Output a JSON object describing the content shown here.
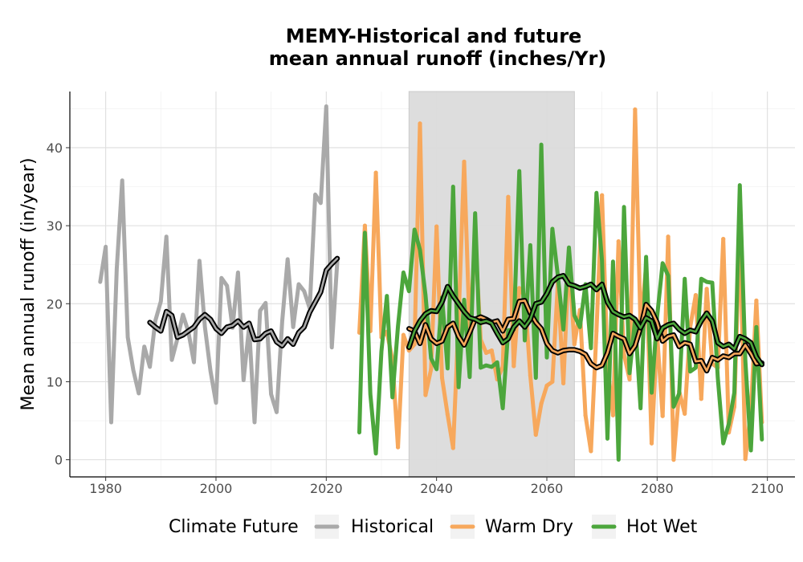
{
  "chart_data": {
    "type": "line",
    "title": "MEMY-Historical and future",
    "subtitle": "mean annual runoff (inches/Yr)",
    "xlabel": "",
    "ylabel": "Mean annual runoff (in/year)",
    "xlim": [
      1973.5,
      2105
    ],
    "ylim": [
      -2.2,
      47.2
    ],
    "x_ticks": [
      1980,
      2000,
      2020,
      2040,
      2060,
      2080,
      2100
    ],
    "y_ticks": [
      0,
      10,
      20,
      30,
      40
    ],
    "grid": true,
    "shaded_period": {
      "x_start": 2035,
      "x_end": 2065,
      "color": "#dcdcdc"
    },
    "legend": {
      "title": "Climate Future",
      "position": "bottom",
      "entries": [
        {
          "label": "Historical",
          "color": "#a9a9a9"
        },
        {
          "label": "Warm Dry",
          "color": "#f7a85c"
        },
        {
          "label": "Hot Wet",
          "color": "#4ca63c"
        }
      ]
    },
    "series": [
      {
        "name": "Historical",
        "color": "#a9a9a9",
        "x": [
          1979,
          1980,
          1981,
          1982,
          1983,
          1984,
          1985,
          1986,
          1987,
          1988,
          1989,
          1990,
          1991,
          1992,
          1993,
          1994,
          1995,
          1996,
          1997,
          1998,
          1999,
          2000,
          2001,
          2002,
          2003,
          2004,
          2005,
          2006,
          2007,
          2008,
          2009,
          2010,
          2011,
          2012,
          2013,
          2014,
          2015,
          2016,
          2017,
          2018,
          2019,
          2020,
          2021,
          2022
        ],
        "y": [
          22.8,
          27.3,
          4.8,
          24.5,
          35.8,
          15.7,
          11.5,
          8.5,
          14.5,
          11.9,
          17.8,
          20.3,
          28.6,
          12.8,
          15.5,
          18.6,
          16.4,
          12.5,
          25.5,
          17.0,
          11.4,
          7.3,
          23.3,
          22.3,
          16.9,
          24.0,
          10.2,
          17.0,
          4.8,
          19.1,
          20.1,
          8.4,
          6.1,
          17.7,
          25.7,
          17.0,
          22.5,
          21.6,
          19.4,
          34.0,
          32.9,
          45.3,
          14.4,
          25.4
        ]
      },
      {
        "name": "",
        "color": "#000000",
        "x": [
          1988,
          1989,
          1990,
          1991,
          1992,
          1993,
          1994,
          1995,
          1996,
          1997,
          1998,
          1999,
          2000,
          2001,
          2002,
          2003,
          2004,
          2005,
          2006,
          2007,
          2008,
          2009,
          2010,
          2011,
          2012,
          2013,
          2014,
          2015,
          2016,
          2017,
          2018,
          2019,
          2020,
          2021,
          2022
        ],
        "y": [
          17.6,
          17.0,
          16.5,
          19.0,
          18.5,
          15.7,
          16.0,
          16.5,
          17.0,
          18.0,
          18.6,
          18.0,
          16.8,
          16.2,
          17.0,
          17.2,
          17.8,
          17.0,
          17.5,
          15.4,
          15.5,
          16.2,
          16.5,
          15.1,
          14.6,
          15.5,
          14.8,
          16.3,
          17.0,
          18.9,
          20.2,
          21.5,
          24.3,
          25.1,
          25.8
        ]
      },
      {
        "name": "Warm Dry",
        "color": "#f7a85c",
        "x": [
          2026,
          2027,
          2028,
          2029,
          2030,
          2031,
          2032,
          2033,
          2034,
          2035,
          2036,
          2037,
          2038,
          2039,
          2040,
          2041,
          2042,
          2043,
          2044,
          2045,
          2046,
          2047,
          2048,
          2049,
          2050,
          2051,
          2052,
          2053,
          2054,
          2055,
          2056,
          2057,
          2058,
          2059,
          2060,
          2061,
          2062,
          2063,
          2064,
          2065,
          2066,
          2067,
          2068,
          2069,
          2070,
          2071,
          2072,
          2073,
          2074,
          2075,
          2076,
          2077,
          2078,
          2079,
          2080,
          2081,
          2082,
          2083,
          2084,
          2085,
          2086,
          2087,
          2088,
          2089,
          2090,
          2091,
          2092,
          2093,
          2094,
          2095,
          2096,
          2097,
          2098,
          2099
        ],
        "y": [
          16.3,
          30.0,
          16.5,
          36.8,
          15.7,
          16.4,
          12.8,
          1.6,
          16.0,
          14.0,
          14.8,
          43.1,
          8.3,
          11.6,
          29.9,
          10.5,
          5.8,
          1.5,
          18.0,
          38.2,
          16.2,
          28.6,
          15.4,
          13.7,
          14.0,
          10.3,
          11.9,
          33.7,
          12.0,
          22.0,
          21.0,
          10.8,
          3.2,
          7.2,
          9.5,
          10.0,
          22.6,
          9.8,
          26.0,
          14.8,
          19.2,
          5.7,
          1.1,
          16.5,
          33.9,
          12.2,
          5.7,
          28.0,
          13.5,
          10.3,
          44.9,
          17.0,
          24.8,
          2.1,
          16.1,
          5.6,
          28.6,
          0.0,
          8.8,
          5.9,
          17.0,
          21.1,
          7.8,
          21.9,
          12.3,
          11.8,
          28.3,
          3.5,
          6.8,
          29.8,
          0.1,
          6.3,
          20.4,
          4.8
        ]
      },
      {
        "name": "Hot Wet",
        "color": "#4ca63c",
        "x": [
          2026,
          2027,
          2028,
          2029,
          2030,
          2031,
          2032,
          2033,
          2034,
          2035,
          2036,
          2037,
          2038,
          2039,
          2040,
          2041,
          2042,
          2043,
          2044,
          2045,
          2046,
          2047,
          2048,
          2049,
          2050,
          2051,
          2052,
          2053,
          2054,
          2055,
          2056,
          2057,
          2058,
          2059,
          2060,
          2061,
          2062,
          2063,
          2064,
          2065,
          2066,
          2067,
          2068,
          2069,
          2070,
          2071,
          2072,
          2073,
          2074,
          2075,
          2076,
          2077,
          2078,
          2079,
          2080,
          2081,
          2082,
          2083,
          2084,
          2085,
          2086,
          2087,
          2088,
          2089,
          2090,
          2091,
          2092,
          2093,
          2094,
          2095,
          2096,
          2097,
          2098,
          2099
        ],
        "y": [
          3.5,
          29.1,
          8.4,
          0.8,
          13.9,
          21.0,
          8.0,
          17.1,
          24.0,
          21.6,
          29.5,
          26.9,
          21.1,
          13.0,
          11.6,
          20.8,
          11.7,
          35.0,
          9.3,
          20.5,
          10.6,
          31.6,
          11.8,
          12.1,
          11.9,
          12.5,
          6.6,
          16.6,
          16.7,
          37.0,
          15.3,
          27.5,
          10.5,
          40.4,
          13.1,
          29.6,
          23.6,
          16.7,
          27.2,
          18.5,
          17.0,
          22.5,
          14.3,
          34.2,
          25.5,
          2.7,
          25.4,
          0.0,
          32.4,
          11.1,
          18.0,
          6.6,
          26.0,
          8.6,
          18.3,
          25.2,
          23.6,
          6.8,
          8.5,
          23.2,
          11.3,
          11.8,
          23.2,
          22.8,
          22.7,
          10.5,
          2.1,
          4.6,
          8.6,
          35.2,
          12.7,
          1.2,
          17.0,
          2.6
        ]
      },
      {
        "name": "",
        "color": "#000000",
        "x": [
          2035,
          2036,
          2037,
          2038,
          2039,
          2040,
          2041,
          2042,
          2043,
          2044,
          2045,
          2046,
          2047,
          2048,
          2049,
          2050,
          2051,
          2052,
          2053,
          2054,
          2055,
          2056,
          2057,
          2058,
          2059,
          2060,
          2061,
          2062,
          2063,
          2064,
          2065,
          2066,
          2067,
          2068,
          2069,
          2070,
          2071,
          2072,
          2073,
          2074,
          2075,
          2076,
          2077,
          2078,
          2079,
          2080,
          2081,
          2082,
          2083,
          2084,
          2085,
          2086,
          2087,
          2088,
          2089,
          2090,
          2091,
          2092,
          2093,
          2094,
          2095,
          2096,
          2097,
          2098,
          2099
        ],
        "y": [
          16.8,
          16.5,
          14.9,
          17.3,
          15.5,
          14.9,
          15.2,
          17.0,
          17.5,
          15.8,
          14.7,
          16.3,
          18.0,
          18.3,
          18.0,
          17.6,
          17.8,
          16.5,
          18.0,
          18.1,
          20.3,
          20.4,
          18.8,
          17.6,
          16.8,
          14.9,
          14.0,
          13.7,
          14.0,
          14.1,
          14.1,
          13.9,
          13.5,
          12.3,
          11.8,
          12.1,
          13.7,
          16.2,
          15.8,
          15.5,
          13.6,
          14.6,
          16.9,
          19.9,
          19.1,
          17.6,
          15.2,
          15.8,
          16.0,
          14.5,
          15.0,
          14.8,
          12.6,
          12.7,
          11.4,
          13.1,
          12.8,
          13.3,
          13.1,
          13.6,
          13.6,
          14.7,
          13.6,
          12.3,
          12.4
        ]
      },
      {
        "name": "",
        "color": "#000000",
        "x": [
          2035,
          2036,
          2037,
          2038,
          2039,
          2040,
          2041,
          2042,
          2043,
          2044,
          2045,
          2046,
          2047,
          2048,
          2049,
          2050,
          2051,
          2052,
          2053,
          2054,
          2055,
          2056,
          2057,
          2058,
          2059,
          2060,
          2061,
          2062,
          2063,
          2064,
          2065,
          2066,
          2067,
          2068,
          2069,
          2070,
          2071,
          2072,
          2073,
          2074,
          2075,
          2076,
          2077,
          2078,
          2079,
          2080,
          2081,
          2082,
          2083,
          2084,
          2085,
          2086,
          2087,
          2088,
          2089,
          2090,
          2091,
          2092,
          2093,
          2094,
          2095,
          2096,
          2097,
          2098,
          2099
        ],
        "y": [
          14.4,
          16.5,
          17.8,
          18.7,
          19.1,
          19.0,
          20.2,
          22.2,
          21.0,
          20.0,
          19.0,
          18.2,
          18.0,
          17.6,
          17.8,
          17.5,
          16.2,
          15.0,
          15.5,
          17.0,
          17.8,
          17.0,
          18.0,
          20.0,
          20.2,
          21.3,
          22.8,
          23.4,
          23.6,
          22.5,
          22.3,
          22.0,
          22.2,
          22.5,
          21.8,
          22.5,
          20.2,
          19.0,
          18.6,
          18.3,
          18.5,
          18.0,
          16.9,
          18.2,
          17.8,
          15.5,
          16.9,
          17.3,
          17.5,
          16.7,
          16.2,
          16.6,
          16.4,
          17.8,
          18.8,
          17.8,
          15.0,
          14.5,
          14.8,
          14.2,
          15.8,
          15.5,
          15.0,
          13.2,
          12.2
        ]
      }
    ]
  }
}
